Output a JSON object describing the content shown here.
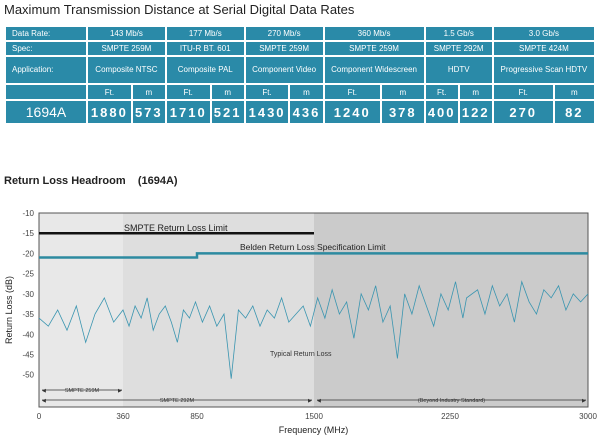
{
  "table": {
    "title": "Maximum Transmission Distance at Serial Digital Data Rates",
    "row_labels": {
      "rate": "Data Rate:",
      "spec": "Spec:",
      "app": "Application:"
    },
    "columns": [
      {
        "rate": "143 Mb/s",
        "spec": "SMPTE 259M",
        "app": "Composite NTSC",
        "ft": "1880",
        "m": "573"
      },
      {
        "rate": "177 Mb/s",
        "spec": "ITU-R BT. 601",
        "app": "Composite PAL",
        "ft": "1710",
        "m": "521"
      },
      {
        "rate": "270 Mb/s",
        "spec": "SMPTE 259M",
        "app": "Component Video",
        "ft": "1430",
        "m": "436"
      },
      {
        "rate": "360 Mb/s",
        "spec": "SMPTE 259M",
        "app": "Component Widescreen",
        "ft": "1240",
        "m": "378"
      },
      {
        "rate": "1.5 Gb/s",
        "spec": "SMPTE 292M",
        "app": "HDTV",
        "ft": "400",
        "m": "122"
      },
      {
        "rate": "3.0 Gb/s",
        "spec": "SMPTE 424M",
        "app": "Progressive Scan HDTV",
        "ft": "270",
        "m": "82"
      }
    ],
    "unit_ft": "Ft.",
    "unit_m": "m",
    "cable": "1694A",
    "header_color": "#2a8aa8"
  },
  "chart_data": {
    "type": "line",
    "title": "Return Loss Headroom    (1694A)",
    "xlabel": "Frequency (MHz)",
    "ylabel": "Return Loss (dB)",
    "xticks": [
      0,
      360,
      850,
      1500,
      2250,
      3000
    ],
    "yticks": [
      -10,
      -15,
      -20,
      -25,
      -30,
      -35,
      -40,
      -45,
      -50
    ],
    "ylim": [
      -58,
      -10
    ],
    "series": [
      {
        "name": "SMPTE Return Loss  Limit",
        "color": "#111111",
        "x": [
          0,
          1500
        ],
        "y": [
          -15,
          -15
        ]
      },
      {
        "name": "Belden Return Loss Specification    Limit",
        "color": "#2d8aa0",
        "x": [
          0,
          850,
          850,
          3000
        ],
        "y": [
          -21,
          -21,
          -20,
          -20
        ]
      },
      {
        "name": "Typical Return Loss",
        "color": "#3a95b0",
        "x": [
          0,
          40,
          80,
          120,
          160,
          200,
          240,
          280,
          320,
          360,
          400,
          440,
          480,
          520,
          560,
          600,
          640,
          680,
          720,
          760,
          800,
          840,
          880,
          920,
          960,
          1000,
          1040,
          1080,
          1120,
          1160,
          1200,
          1240,
          1280,
          1320,
          1360,
          1400,
          1440,
          1480,
          1520,
          1560,
          1600,
          1640,
          1680,
          1720,
          1760,
          1800,
          1840,
          1880,
          1920,
          1960,
          2000,
          2040,
          2080,
          2120,
          2160,
          2200,
          2240,
          2280,
          2320,
          2340,
          2400,
          2440,
          2480,
          2520,
          2560,
          2600,
          2640,
          2680,
          2720,
          2760,
          2800,
          2840,
          2880,
          2920,
          2960,
          3000
        ],
        "y": [
          -36,
          -38,
          -34,
          -39,
          -33,
          -42,
          -35,
          -31,
          -37,
          -34,
          -38,
          -33,
          -36,
          -31,
          -39,
          -35,
          -33,
          -37,
          -42,
          -34,
          -36,
          -32,
          -37,
          -33,
          -38,
          -35,
          -51,
          -34,
          -36,
          -33,
          -38,
          -34,
          -36,
          -31,
          -37,
          -35,
          -33,
          -38,
          -31,
          -36,
          -29,
          -35,
          -32,
          -41,
          -30,
          -34,
          -28,
          -37,
          -33,
          -46,
          -30,
          -35,
          -28,
          -33,
          -38,
          -30,
          -34,
          -27,
          -36,
          -31,
          -29,
          -35,
          -28,
          -33,
          -30,
          -37,
          -27,
          -32,
          -35,
          -29,
          -31,
          -28,
          -34,
          -30,
          -32,
          -30
        ]
      }
    ],
    "annotations": {
      "smpte259": "SMPTE 259M",
      "smpte292": "SMPTE 292M",
      "beyond": "(Beyond Industry Standard)",
      "curve": "Typical Return Loss"
    },
    "regions": [
      "SMPTE 259M: 0-360",
      "SMPTE 292M: 360-1500",
      "Beyond: 1500-3000"
    ],
    "grid": false
  }
}
